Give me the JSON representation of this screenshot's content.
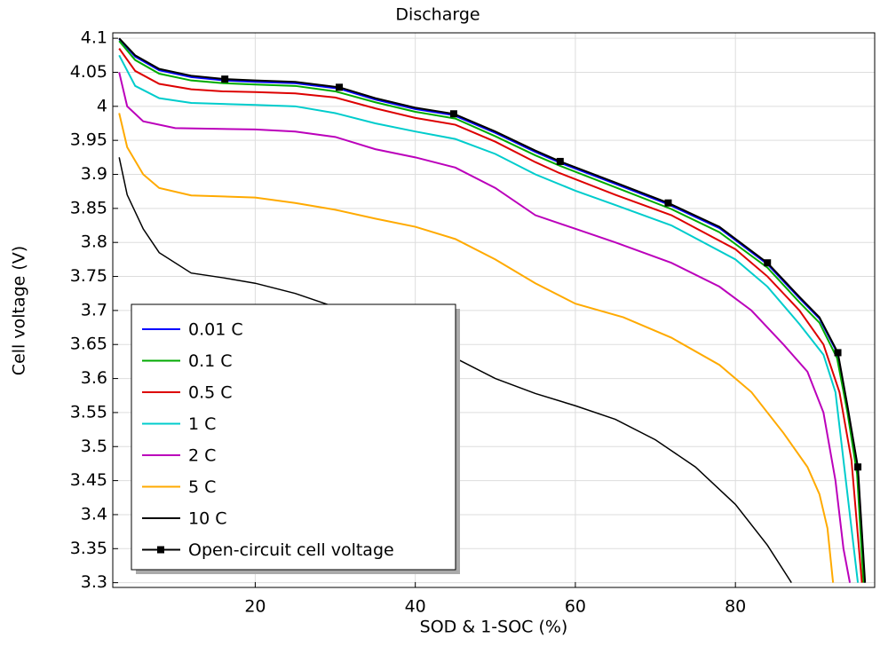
{
  "chart_data": {
    "type": "line",
    "title": "Discharge",
    "xlabel": "SOD & 1-SOC (%)",
    "ylabel": "Cell voltage (V)",
    "xlim": [
      2.2,
      97.4
    ],
    "ylim": [
      3.293,
      4.108
    ],
    "xticks": [
      20,
      40,
      60,
      80
    ],
    "yticks": [
      3.3,
      3.35,
      3.4,
      3.45,
      3.5,
      3.55,
      3.6,
      3.65,
      3.7,
      3.75,
      3.8,
      3.85,
      3.9,
      3.95,
      4,
      4.05,
      4.1
    ],
    "grid": true,
    "legend": "lower left",
    "series": [
      {
        "name": "0.01 C",
        "color": "#0000ff",
        "x": [
          3,
          5,
          8,
          12,
          16.2,
          20,
          25,
          30.5,
          35,
          40,
          44.8,
          50,
          55,
          58.1,
          65,
          71.6,
          78,
          84,
          88,
          90.5,
          92.8,
          94,
          95.3,
          96.1
        ],
        "values": [
          4.099,
          4.073,
          4.053,
          4.043,
          4.038,
          4.036,
          4.034,
          4.026,
          4.01,
          3.996,
          3.987,
          3.961,
          3.933,
          3.917,
          3.886,
          3.856,
          3.821,
          3.768,
          3.718,
          3.688,
          3.636,
          3.558,
          3.468,
          3.3
        ]
      },
      {
        "name": "0.1 C",
        "color": "#00aa00",
        "x": [
          3,
          5,
          8,
          12,
          16,
          20,
          25,
          30,
          35,
          40,
          45,
          50,
          55,
          58,
          65,
          72,
          78,
          84,
          88,
          90.5,
          92.7,
          94,
          95.2,
          96
        ],
        "values": [
          4.096,
          4.068,
          4.048,
          4.038,
          4.034,
          4.032,
          4.03,
          4.022,
          4.006,
          3.992,
          3.982,
          3.956,
          3.928,
          3.913,
          3.881,
          3.849,
          3.815,
          3.763,
          3.712,
          3.682,
          3.63,
          3.55,
          3.46,
          3.3
        ]
      },
      {
        "name": "0.5 C",
        "color": "#dd0000",
        "x": [
          3,
          5,
          8,
          12,
          16,
          20,
          25,
          30,
          35,
          40,
          45,
          50,
          55,
          58,
          65,
          72,
          80,
          84,
          88,
          91,
          93,
          94.5,
          95.8
        ],
        "values": [
          4.085,
          4.052,
          4.033,
          4.025,
          4.022,
          4.021,
          4.019,
          4.013,
          3.997,
          3.983,
          3.973,
          3.948,
          3.918,
          3.902,
          3.87,
          3.84,
          3.79,
          3.75,
          3.7,
          3.65,
          3.58,
          3.48,
          3.3
        ]
      },
      {
        "name": "1 C",
        "color": "#00cccc",
        "x": [
          3,
          5,
          8,
          12,
          20,
          25,
          30,
          35,
          40,
          45,
          50,
          55,
          60,
          65,
          72,
          80,
          84,
          88,
          91,
          92.5,
          93.5,
          94.5,
          95.3
        ],
        "values": [
          4.075,
          4.03,
          4.012,
          4.005,
          4.002,
          4.0,
          3.99,
          3.975,
          3.963,
          3.952,
          3.93,
          3.9,
          3.876,
          3.855,
          3.825,
          3.775,
          3.735,
          3.68,
          3.635,
          3.58,
          3.48,
          3.38,
          3.3
        ]
      },
      {
        "name": "2 C",
        "color": "#bb00bb",
        "x": [
          3,
          4,
          6,
          10,
          20,
          25,
          30,
          35,
          40,
          45,
          50,
          55,
          60,
          65,
          72,
          78,
          82,
          86,
          89,
          91,
          92.5,
          93.5,
          94.3
        ],
        "values": [
          4.05,
          4.0,
          3.978,
          3.968,
          3.966,
          3.963,
          3.955,
          3.937,
          3.925,
          3.91,
          3.88,
          3.84,
          3.82,
          3.8,
          3.77,
          3.735,
          3.7,
          3.65,
          3.61,
          3.55,
          3.45,
          3.35,
          3.3
        ]
      },
      {
        "name": "5 C",
        "color": "#ffaa00",
        "x": [
          3,
          4,
          6,
          8,
          12,
          20,
          25,
          30,
          35,
          40,
          45,
          50,
          55,
          60,
          66,
          72,
          78,
          82,
          86,
          89,
          90.5,
          91.5,
          92.2
        ],
        "values": [
          3.99,
          3.94,
          3.9,
          3.88,
          3.869,
          3.866,
          3.858,
          3.848,
          3.835,
          3.823,
          3.805,
          3.775,
          3.74,
          3.71,
          3.69,
          3.66,
          3.62,
          3.58,
          3.52,
          3.47,
          3.43,
          3.38,
          3.3
        ]
      },
      {
        "name": "10 C",
        "color": "#000000",
        "x": [
          3,
          4,
          6,
          8,
          12,
          16,
          20,
          25,
          30,
          35,
          40,
          45,
          50,
          55,
          60,
          65,
          70,
          75,
          80,
          84,
          87
        ],
        "values": [
          3.925,
          3.87,
          3.82,
          3.785,
          3.755,
          3.748,
          3.74,
          3.725,
          3.705,
          3.68,
          3.655,
          3.63,
          3.6,
          3.578,
          3.56,
          3.54,
          3.51,
          3.47,
          3.415,
          3.355,
          3.3
        ]
      },
      {
        "name": "Open-circuit cell voltage",
        "color": "#000000",
        "x": [
          3,
          5,
          8,
          12,
          16.2,
          20,
          25,
          30.5,
          35,
          40,
          44.8,
          50,
          55,
          58.1,
          65,
          71.6,
          78,
          84,
          88,
          90.5,
          92.8,
          94,
          95.3,
          96.2
        ],
        "values": [
          4.1,
          4.075,
          4.055,
          4.045,
          4.04,
          4.038,
          4.036,
          4.028,
          4.012,
          3.998,
          3.989,
          3.963,
          3.935,
          3.919,
          3.888,
          3.858,
          3.823,
          3.77,
          3.72,
          3.69,
          3.638,
          3.56,
          3.47,
          3.3
        ],
        "marker_x": [
          16.2,
          30.5,
          44.8,
          58.1,
          71.6,
          84,
          92.8,
          95.3
        ],
        "marker_values": [
          4.04,
          4.028,
          3.989,
          3.919,
          3.858,
          3.77,
          3.638,
          3.47
        ]
      }
    ]
  }
}
